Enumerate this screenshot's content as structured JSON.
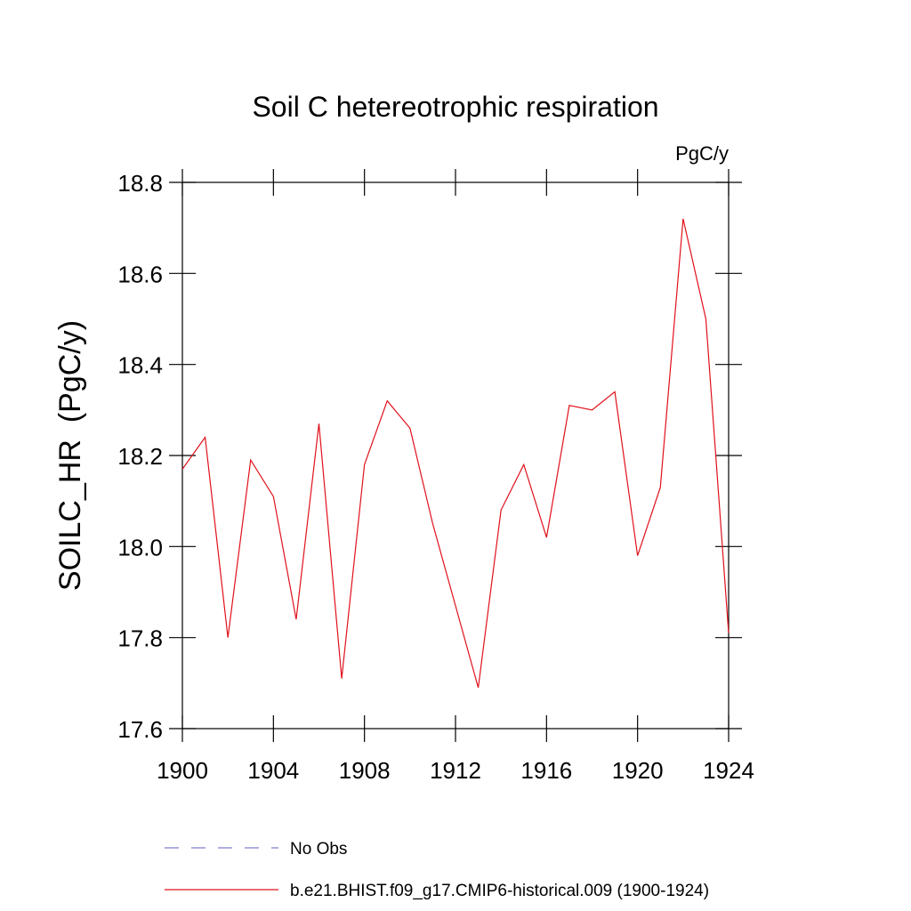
{
  "chart_data": {
    "type": "line",
    "title": "Soil C hetereotrophic respiration",
    "units": "PgC/y",
    "y_label": "SOILC_HR  (PgC/y)",
    "x": [
      1900,
      1901,
      1902,
      1903,
      1904,
      1905,
      1906,
      1907,
      1908,
      1909,
      1910,
      1911,
      1912,
      1913,
      1914,
      1915,
      1916,
      1917,
      1918,
      1919,
      1920,
      1921,
      1922,
      1923,
      1924
    ],
    "series": [
      {
        "name": "No Obs",
        "color": "#7f7fd0",
        "dash": true,
        "values": [
          null,
          null,
          null,
          null,
          null,
          null,
          null,
          null,
          null,
          null,
          null,
          null,
          null,
          null,
          null,
          null,
          null,
          null,
          null,
          null,
          null,
          null,
          null,
          null,
          null
        ]
      },
      {
        "name": "b.e21.BHIST.f09_g17.CMIP6-historical.009 (1900-1924)",
        "color": "#e0101a",
        "dash": false,
        "values": [
          18.17,
          18.24,
          17.8,
          18.19,
          18.11,
          17.84,
          18.27,
          17.71,
          18.18,
          18.32,
          18.26,
          18.05,
          17.87,
          17.69,
          18.08,
          18.18,
          18.02,
          18.31,
          18.3,
          18.34,
          17.98,
          18.13,
          18.72,
          18.5,
          17.81
        ]
      }
    ],
    "xlim": [
      1900,
      1924
    ],
    "xticks": [
      1900,
      1904,
      1908,
      1912,
      1916,
      1920,
      1924
    ],
    "ylim": [
      17.6,
      18.8
    ],
    "yticks": [
      {
        "value": 17.6,
        "label": "17.6"
      },
      {
        "value": 17.8,
        "label": "17.8"
      },
      {
        "value": 18.0,
        "label": "18.0"
      },
      {
        "value": 18.2,
        "label": "18.2"
      },
      {
        "value": 18.4,
        "label": "18.4"
      },
      {
        "value": 18.6,
        "label": "18.6"
      },
      {
        "value": 18.8,
        "label": "18.8"
      }
    ]
  }
}
